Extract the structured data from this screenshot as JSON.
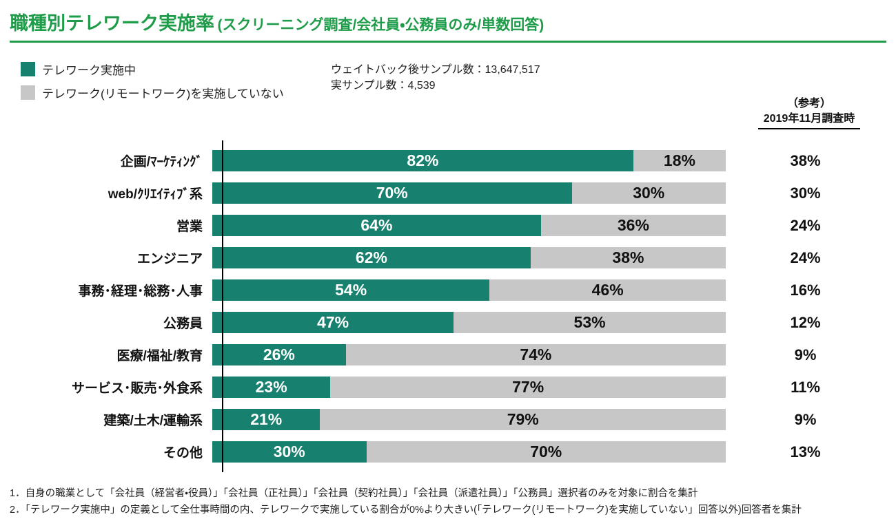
{
  "header": {
    "title": "職種別テレワーク実施率",
    "subtitle": "(スクリーニング調査/会社員・公務員のみ/単数回答)",
    "accent_color": "#1F9C49"
  },
  "legend": {
    "implementing": "テレワーク実施中",
    "not_implementing": "テレワーク(リモートワーク)を実施していない"
  },
  "sample": {
    "weighted": "ウェイトバック後サンプル数：13,647,517",
    "actual": "実サンプル数：4,539"
  },
  "reference_header": {
    "line1": "（参考）",
    "line2": "2019年11月調査時"
  },
  "chart_data": {
    "type": "bar",
    "orientation": "horizontal",
    "stacked": true,
    "value_unit": "%",
    "x_range": [
      0,
      100
    ],
    "categories": [
      "企画/ﾏｰｹﾃｨﾝｸﾞ",
      "web/ｸﾘｴｲﾃｨﾌﾞ系",
      "営業",
      "エンジニア",
      "事務･経理･総務･人事",
      "公務員",
      "医療/福祉/教育",
      "サービス･販売･外食系",
      "建築/土木/運輸系",
      "その他"
    ],
    "series": [
      {
        "name": "テレワーク実施中",
        "color": "#17806E",
        "values": [
          82,
          70,
          64,
          62,
          54,
          47,
          26,
          23,
          21,
          30
        ]
      },
      {
        "name": "テレワーク(リモートワーク)を実施していない",
        "color": "#C7C7C7",
        "values": [
          18,
          30,
          36,
          38,
          46,
          53,
          74,
          77,
          79,
          70
        ]
      }
    ],
    "reference_series": {
      "name": "（参考）2019年11月調査時",
      "values": [
        38,
        30,
        24,
        24,
        16,
        12,
        9,
        11,
        9,
        13
      ]
    }
  },
  "footnotes": [
    "1．自身の職業として「会社員（経営者・役員）」「会社員（正社員）」「会社員（契約社員）」「会社員（派遣社員）」「公務員」選択者のみを対象に割合を集計",
    "2．「テレワーク実施中」の定義として全仕事時間の内、テレワークで実施している割合が0%より大きい(「テレワーク(リモートワーク)を実施していない」回答以外)回答者を集計"
  ]
}
